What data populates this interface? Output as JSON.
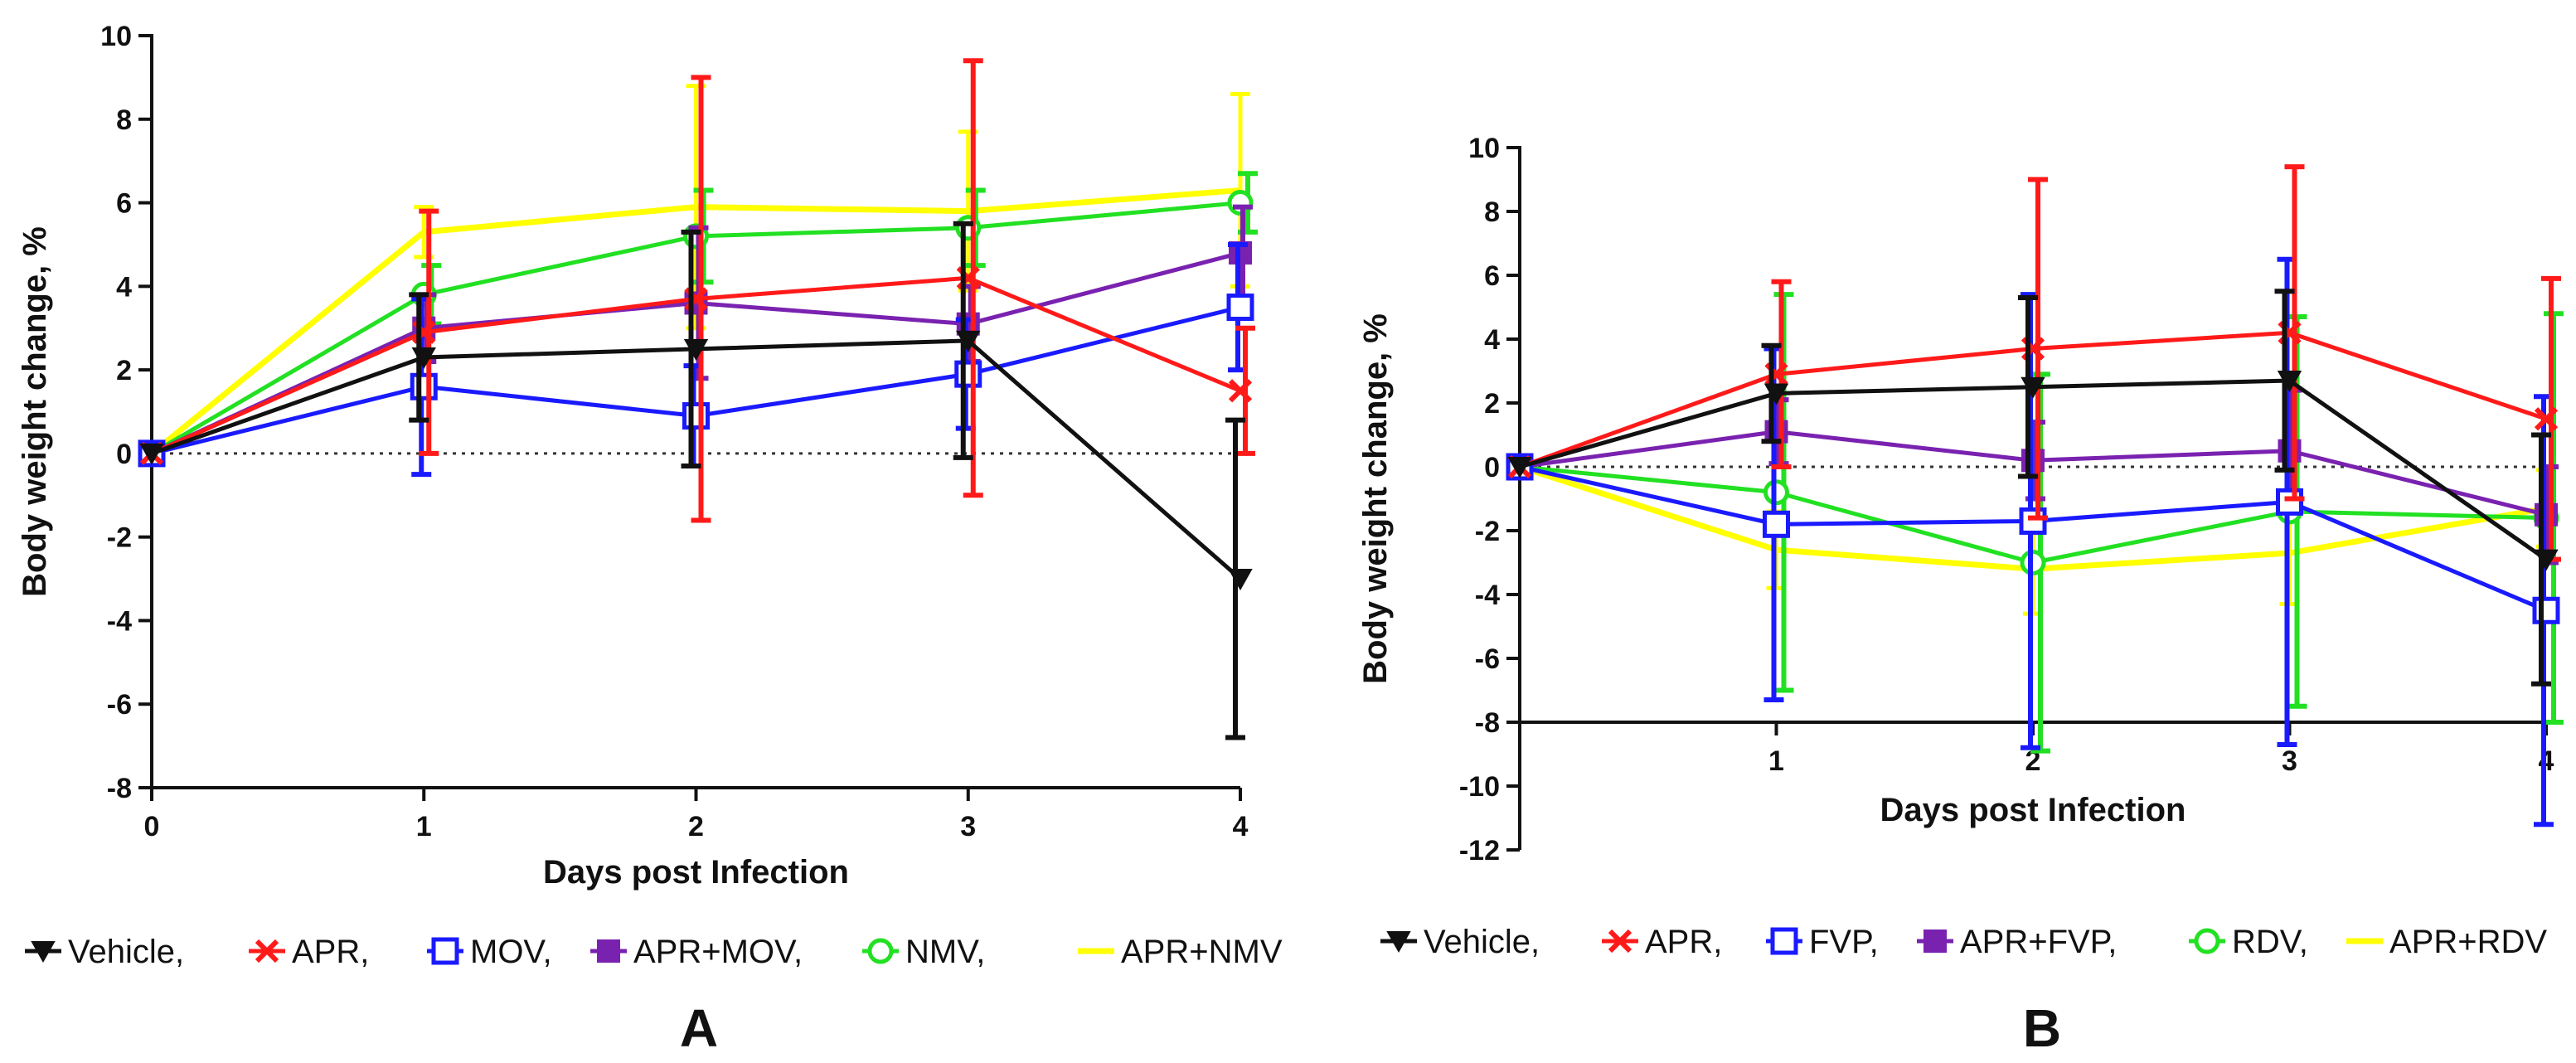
{
  "colors": {
    "Vehicle": "#111111",
    "APR": "#ff1a1a",
    "MOV": "#1a1aff",
    "FVP": "#1a1aff",
    "APR+MOV": "#7a22b0",
    "APR+FVP": "#7a22b0",
    "NMV": "#22e022",
    "RDV": "#22e022",
    "APR+NMV": "#ffff00",
    "APR+RDV": "#ffff00"
  },
  "chart_data": [
    {
      "type": "line",
      "panel_label": "A",
      "xlabel": "Days post Infection",
      "ylabel": "Body weight change, %",
      "x": [
        0,
        1,
        2,
        3,
        4
      ],
      "xlim": [
        0,
        4
      ],
      "ylim": [
        -8,
        10
      ],
      "xticks": [
        0,
        1,
        2,
        3,
        4
      ],
      "yticks": [
        -8,
        -6,
        -4,
        -2,
        0,
        2,
        4,
        6,
        8,
        10
      ],
      "x_tick_labels": [
        "0",
        "1",
        "2",
        "3",
        "4"
      ],
      "y_tick_labels": [
        "-8",
        "-6",
        "-4",
        "-2",
        "0",
        "2",
        "4",
        "6",
        "8",
        "10"
      ],
      "reference_line": 0,
      "series": [
        {
          "name": "Vehicle",
          "legend_label": "Vehicle,",
          "marker": "triangle-down",
          "values": [
            0,
            2.3,
            2.5,
            2.7,
            -3.0
          ],
          "errors": [
            0,
            1.5,
            2.8,
            2.8,
            3.8
          ]
        },
        {
          "name": "APR",
          "legend_label": "APR,",
          "marker": "cross",
          "values": [
            0,
            2.9,
            3.7,
            4.2,
            1.5
          ],
          "errors": [
            0,
            2.9,
            5.3,
            5.2,
            1.5
          ]
        },
        {
          "name": "MOV",
          "legend_label": "MOV,",
          "marker": "square",
          "values": [
            0,
            1.6,
            0.9,
            1.9,
            3.5
          ],
          "errors": [
            0,
            2.1,
            1.2,
            1.3,
            1.5
          ]
        },
        {
          "name": "APR+MOV",
          "legend_label": "APR+MOV,",
          "marker": "square-filled",
          "values": [
            0,
            3.0,
            3.6,
            3.1,
            4.8
          ],
          "errors": [
            0,
            0.8,
            1.8,
            0.9,
            1.1
          ]
        },
        {
          "name": "NMV",
          "legend_label": "NMV,",
          "marker": "circle",
          "values": [
            0,
            3.8,
            5.2,
            5.4,
            6.0
          ],
          "errors": [
            0,
            0.7,
            1.1,
            0.9,
            0.7
          ]
        },
        {
          "name": "APR+NMV",
          "legend_label": "APR+NMV",
          "marker": "none",
          "values": [
            0,
            5.3,
            5.9,
            5.8,
            6.3
          ],
          "errors": [
            0,
            0.6,
            2.9,
            1.9,
            2.3
          ]
        }
      ]
    },
    {
      "type": "line",
      "panel_label": "B",
      "xlabel": "Days post Infection",
      "ylabel": "Body weight change, %",
      "x": [
        0,
        1,
        2,
        3,
        4
      ],
      "xlim": [
        0,
        4
      ],
      "ylim": [
        -12,
        10
      ],
      "xticks": [
        1,
        2,
        3,
        4
      ],
      "yticks": [
        -12,
        -10,
        -8,
        -6,
        -4,
        -2,
        0,
        2,
        4,
        6,
        8,
        10
      ],
      "x_tick_labels": [
        "1",
        "2",
        "3",
        "4"
      ],
      "y_tick_labels": [
        "-12",
        "-10",
        "-8",
        "-6",
        "-4",
        "-2",
        "0",
        "2",
        "4",
        "6",
        "8",
        "10"
      ],
      "x_axis_at": -8,
      "reference_line": 0,
      "series": [
        {
          "name": "Vehicle",
          "legend_label": "Vehicle,",
          "marker": "triangle-down",
          "values": [
            0,
            2.3,
            2.5,
            2.7,
            -2.9
          ],
          "errors": [
            0,
            1.5,
            2.8,
            2.8,
            3.9
          ]
        },
        {
          "name": "APR",
          "legend_label": "APR,",
          "marker": "cross",
          "values": [
            0,
            2.9,
            3.7,
            4.2,
            1.5
          ],
          "errors": [
            0,
            2.9,
            5.3,
            5.2,
            4.4
          ]
        },
        {
          "name": "FVP",
          "legend_label": "FVP,",
          "marker": "square",
          "values": [
            0,
            -1.8,
            -1.7,
            -1.1,
            -4.5
          ],
          "errors": [
            0,
            5.5,
            7.1,
            7.6,
            6.7
          ]
        },
        {
          "name": "APR+FVP",
          "legend_label": "APR+FVP,",
          "marker": "square-filled",
          "values": [
            0,
            1.1,
            0.2,
            0.5,
            -1.5
          ],
          "errors": [
            0,
            1.0,
            1.2,
            1.9,
            1.5
          ]
        },
        {
          "name": "RDV",
          "legend_label": "RDV,",
          "marker": "circle",
          "values": [
            0,
            -0.8,
            -3.0,
            -1.4,
            -1.6
          ],
          "errors": [
            0,
            6.2,
            5.9,
            6.1,
            6.4
          ]
        },
        {
          "name": "APR+RDV",
          "legend_label": "APR+RDV",
          "marker": "none",
          "values": [
            0,
            -2.6,
            -3.2,
            -2.7,
            -1.3
          ],
          "errors": [
            0,
            1.2,
            1.4,
            1.6,
            1.2
          ]
        }
      ]
    }
  ]
}
